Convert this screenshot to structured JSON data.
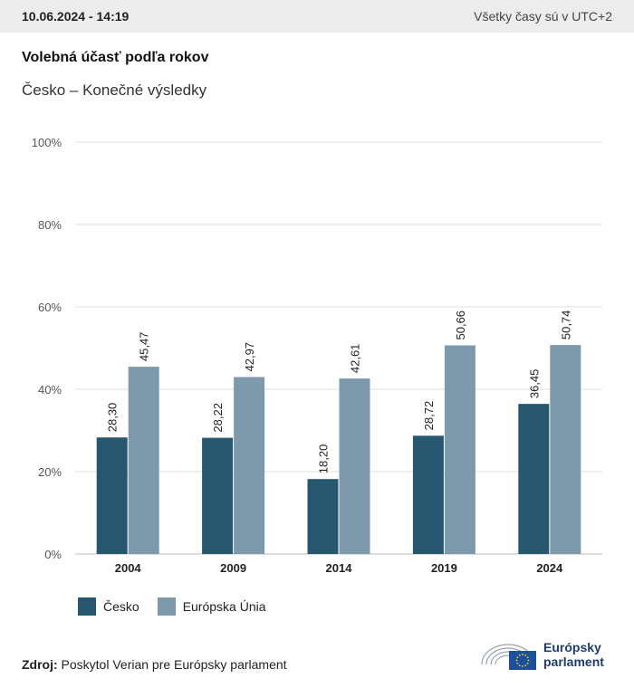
{
  "header": {
    "timestamp": "10.06.2024 - 14:19",
    "timezone_note": "Všetky časy sú v UTC+2"
  },
  "title": "Volebná účasť podľa rokov",
  "subtitle": "Česko – Konečné výsledky",
  "colors": {
    "cesko": "#27566f",
    "eu": "#7d9aad",
    "grid": "#e2e2e2",
    "axis": "#bdbdbd",
    "logo_blue": "#1e3d6b",
    "eu_flag": "#1c4f9c",
    "eu_stars": "#ffd400"
  },
  "chart_data": {
    "type": "bar",
    "categories": [
      "2004",
      "2009",
      "2014",
      "2019",
      "2024"
    ],
    "series": [
      {
        "name": "Česko",
        "values": [
          28.3,
          28.22,
          18.2,
          28.72,
          36.45
        ],
        "labels": [
          "28,30",
          "28,22",
          "18,20",
          "28,72",
          "36,45"
        ]
      },
      {
        "name": "Európska Únia",
        "values": [
          45.47,
          42.97,
          42.61,
          50.66,
          50.74
        ],
        "labels": [
          "45,47",
          "42,97",
          "42,61",
          "50,66",
          "50,74"
        ]
      }
    ],
    "yticks": [
      "0%",
      "20%",
      "40%",
      "60%",
      "80%",
      "100%"
    ],
    "ylim": [
      0,
      100
    ],
    "grid": true,
    "legend_position": "bottom-left"
  },
  "source": {
    "label": "Zdroj:",
    "text": "Poskytol Verian pre Európsky parlament"
  },
  "logo": {
    "line1": "Európsky",
    "line2": "parlament",
    "icon": "european-parliament-hemicycle-icon"
  }
}
